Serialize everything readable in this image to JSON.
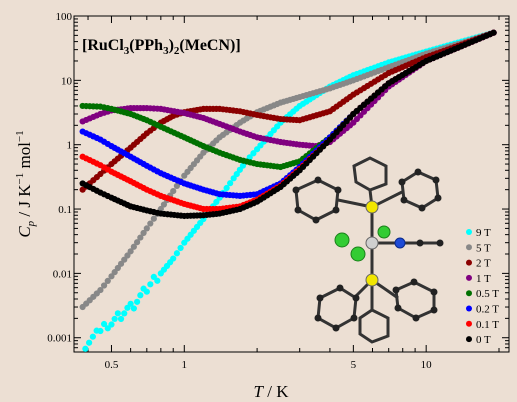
{
  "chart_data": {
    "type": "scatter",
    "title": "[RuCl3(PPh3)2(MeCN)]",
    "xlabel": "T / K",
    "ylabel": "Cp / J K^-1 mol^-1",
    "xscale": "log",
    "yscale": "log",
    "xlim": [
      0.35,
      22
    ],
    "ylim": [
      0.0006,
      100
    ],
    "xticks": [
      "0.5",
      "1",
      "5",
      "10"
    ],
    "yticks": [
      "0.001",
      "0.01",
      "0.1",
      "1",
      "10",
      "100"
    ],
    "legend_position": "lower-right",
    "inset": "molecular structure",
    "series": [
      {
        "name": "9 T",
        "color": "#00ffff",
        "points": [
          [
            0.39,
            0.0008
          ],
          [
            0.45,
            0.0012
          ],
          [
            0.5,
            0.0018
          ],
          [
            0.6,
            0.003
          ],
          [
            0.7,
            0.0055
          ],
          [
            0.8,
            0.01
          ],
          [
            0.9,
            0.017
          ],
          [
            1.0,
            0.03
          ],
          [
            1.2,
            0.07
          ],
          [
            1.4,
            0.15
          ],
          [
            1.6,
            0.3
          ],
          [
            1.8,
            0.55
          ],
          [
            2.0,
            0.85
          ],
          [
            2.5,
            2.2
          ],
          [
            3.0,
            4.0
          ],
          [
            4.0,
            8.0
          ],
          [
            5.0,
            12
          ],
          [
            7.0,
            19
          ],
          [
            10,
            28
          ],
          [
            14,
            40
          ],
          [
            19,
            55
          ]
        ]
      },
      {
        "name": "5 T",
        "color": "#888888",
        "points": [
          [
            0.38,
            0.003
          ],
          [
            0.45,
            0.0055
          ],
          [
            0.5,
            0.009
          ],
          [
            0.6,
            0.022
          ],
          [
            0.7,
            0.05
          ],
          [
            0.8,
            0.1
          ],
          [
            0.9,
            0.19
          ],
          [
            1.0,
            0.33
          ],
          [
            1.2,
            0.75
          ],
          [
            1.4,
            1.3
          ],
          [
            1.7,
            2.2
          ],
          [
            2.0,
            3.2
          ],
          [
            2.5,
            4.5
          ],
          [
            3.0,
            5.5
          ],
          [
            4.0,
            7.5
          ],
          [
            5.0,
            10
          ],
          [
            7.0,
            16
          ],
          [
            10,
            26
          ],
          [
            14,
            38
          ],
          [
            19,
            55
          ]
        ]
      },
      {
        "name": "2 T",
        "color": "#8b0000",
        "points": [
          [
            0.38,
            0.2
          ],
          [
            0.45,
            0.35
          ],
          [
            0.5,
            0.5
          ],
          [
            0.6,
            0.9
          ],
          [
            0.7,
            1.5
          ],
          [
            0.8,
            2.2
          ],
          [
            0.9,
            2.8
          ],
          [
            1.0,
            3.2
          ],
          [
            1.2,
            3.6
          ],
          [
            1.4,
            3.6
          ],
          [
            1.7,
            3.3
          ],
          [
            2.0,
            2.9
          ],
          [
            2.5,
            2.5
          ],
          [
            3.0,
            2.4
          ],
          [
            4.0,
            3.3
          ],
          [
            5.0,
            6.0
          ],
          [
            7.0,
            13
          ],
          [
            10,
            23
          ],
          [
            14,
            36
          ],
          [
            19,
            55
          ]
        ]
      },
      {
        "name": "1 T",
        "color": "#800080",
        "points": [
          [
            0.38,
            2.3
          ],
          [
            0.45,
            3.0
          ],
          [
            0.5,
            3.4
          ],
          [
            0.6,
            3.7
          ],
          [
            0.7,
            3.7
          ],
          [
            0.8,
            3.6
          ],
          [
            1.0,
            3.1
          ],
          [
            1.2,
            2.6
          ],
          [
            1.4,
            2.1
          ],
          [
            1.7,
            1.6
          ],
          [
            2.0,
            1.3
          ],
          [
            2.5,
            1.1
          ],
          [
            3.0,
            1.0
          ],
          [
            3.5,
            0.95
          ],
          [
            4.0,
            1.1
          ],
          [
            5.0,
            2.2
          ],
          [
            7.0,
            8
          ],
          [
            10,
            20
          ],
          [
            14,
            34
          ],
          [
            19,
            55
          ]
        ]
      },
      {
        "name": "0.5 T",
        "color": "#007000",
        "points": [
          [
            0.38,
            4.0
          ],
          [
            0.45,
            3.9
          ],
          [
            0.5,
            3.6
          ],
          [
            0.6,
            3.0
          ],
          [
            0.7,
            2.4
          ],
          [
            0.8,
            1.9
          ],
          [
            1.0,
            1.3
          ],
          [
            1.2,
            0.95
          ],
          [
            1.4,
            0.75
          ],
          [
            1.7,
            0.58
          ],
          [
            2.0,
            0.5
          ],
          [
            2.5,
            0.45
          ],
          [
            3.0,
            0.55
          ],
          [
            4.0,
            1.3
          ],
          [
            5.0,
            3.0
          ],
          [
            7.0,
            9
          ],
          [
            10,
            20
          ],
          [
            14,
            34
          ],
          [
            19,
            55
          ]
        ]
      },
      {
        "name": "0.2 T",
        "color": "#0000ff",
        "points": [
          [
            0.38,
            1.6
          ],
          [
            0.45,
            1.2
          ],
          [
            0.5,
            0.95
          ],
          [
            0.6,
            0.65
          ],
          [
            0.7,
            0.47
          ],
          [
            0.8,
            0.36
          ],
          [
            1.0,
            0.25
          ],
          [
            1.2,
            0.2
          ],
          [
            1.4,
            0.17
          ],
          [
            1.7,
            0.16
          ],
          [
            2.0,
            0.17
          ],
          [
            2.5,
            0.25
          ],
          [
            3.0,
            0.45
          ],
          [
            4.0,
            1.3
          ],
          [
            5.0,
            3.0
          ],
          [
            7.0,
            9
          ],
          [
            10,
            20
          ],
          [
            14,
            34
          ],
          [
            19,
            55
          ]
        ]
      },
      {
        "name": "0.1 T",
        "color": "#ff0000",
        "points": [
          [
            0.38,
            0.65
          ],
          [
            0.45,
            0.48
          ],
          [
            0.5,
            0.38
          ],
          [
            0.6,
            0.27
          ],
          [
            0.7,
            0.2
          ],
          [
            0.8,
            0.16
          ],
          [
            1.0,
            0.12
          ],
          [
            1.2,
            0.1
          ],
          [
            1.4,
            0.1
          ],
          [
            1.7,
            0.11
          ],
          [
            2.0,
            0.14
          ],
          [
            2.5,
            0.23
          ],
          [
            3.0,
            0.42
          ],
          [
            4.0,
            1.2
          ],
          [
            5.0,
            3.0
          ],
          [
            7.0,
            9
          ],
          [
            10,
            20
          ],
          [
            14,
            34
          ],
          [
            19,
            55
          ]
        ]
      },
      {
        "name": "0 T",
        "color": "#000000",
        "points": [
          [
            0.38,
            0.25
          ],
          [
            0.45,
            0.18
          ],
          [
            0.5,
            0.15
          ],
          [
            0.6,
            0.11
          ],
          [
            0.7,
            0.095
          ],
          [
            0.8,
            0.085
          ],
          [
            1.0,
            0.078
          ],
          [
            1.2,
            0.08
          ],
          [
            1.4,
            0.085
          ],
          [
            1.7,
            0.1
          ],
          [
            2.0,
            0.13
          ],
          [
            2.5,
            0.22
          ],
          [
            3.0,
            0.4
          ],
          [
            4.0,
            1.2
          ],
          [
            5.0,
            3.0
          ],
          [
            7.0,
            9
          ],
          [
            10,
            20
          ],
          [
            14,
            34
          ],
          [
            19,
            55
          ]
        ]
      }
    ]
  }
}
